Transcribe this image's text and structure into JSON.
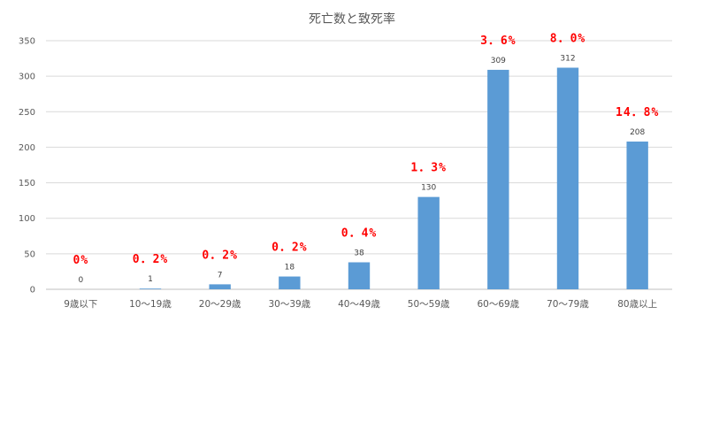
{
  "chart_data": {
    "type": "bar",
    "title": "死亡数と致死率",
    "xlabel": "",
    "ylabel": "",
    "ylim": [
      0,
      350
    ],
    "yticks": [
      0,
      50,
      100,
      150,
      200,
      250,
      300,
      350
    ],
    "grid": true,
    "legend": "none",
    "bar_color": "#5b9bd5",
    "categories": [
      "9歳以下",
      "10～19歳",
      "20～29歳",
      "30～39歳",
      "40～49歳",
      "50～59歳",
      "60～69歳",
      "70～79歳",
      "80歳以上"
    ],
    "series": [
      {
        "values": [
          0,
          1,
          7,
          18,
          38,
          130,
          309,
          312,
          208
        ]
      }
    ],
    "annotations": [
      "0%",
      "0．2%",
      "0．2%",
      "0．2%",
      "0．4%",
      "1．3%",
      "3．6%",
      "8．0%",
      "14．8%"
    ],
    "annotation_color": "#ff0000"
  }
}
